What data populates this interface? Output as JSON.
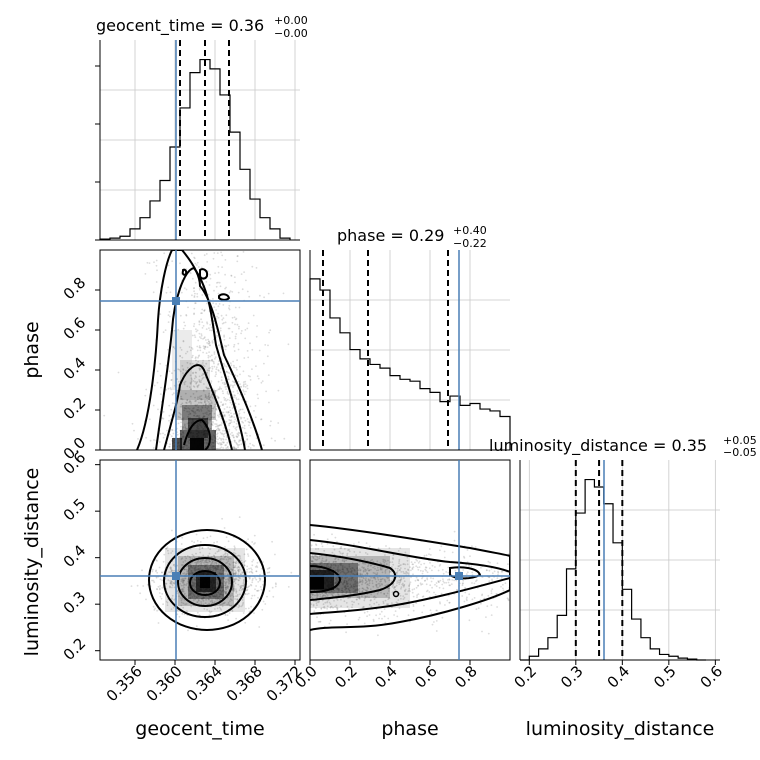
{
  "chart_data": {
    "type": "corner",
    "parameters": [
      "geocent_time",
      "phase",
      "luminosity_distance"
    ],
    "truths": {
      "geocent_time": 0.3605,
      "phase": 0.745,
      "luminosity_distance": 0.357
    },
    "colors": {
      "truth": "#4a7fb5",
      "contour": "#000000",
      "hist": "#000000",
      "grid": "#c8c8c8"
    },
    "titles": [
      {
        "name": "geocent_time",
        "median": "0.36",
        "plus": "+0.00",
        "minus": "−0.00"
      },
      {
        "name": "phase",
        "median": "0.29",
        "plus": "+0.40",
        "minus": "−0.22"
      },
      {
        "name": "luminosity_distance",
        "median": "0.35",
        "plus": "+0.05",
        "minus": "−0.05"
      }
    ],
    "axes": {
      "geocent_time": {
        "range": [
          0.3525,
          0.3725
        ],
        "ticks": [
          0.356,
          0.36,
          0.364,
          0.368,
          0.372
        ],
        "tick_labels": [
          "0.356",
          "0.360",
          "0.364",
          "0.368",
          "0.372"
        ],
        "xlabel": "geocent_time"
      },
      "phase": {
        "range": [
          0.0,
          1.0
        ],
        "ticks": [
          0.0,
          0.2,
          0.4,
          0.6,
          0.8
        ],
        "tick_labels": [
          "0.0",
          "0.2",
          "0.4",
          "0.6",
          "0.8"
        ],
        "xlabel": "phase",
        "ylabel": "phase"
      },
      "luminosity_distance": {
        "range": [
          0.18,
          0.61
        ],
        "ticks": [
          0.2,
          0.3,
          0.4,
          0.5,
          0.6
        ],
        "tick_labels": [
          "0.2",
          "0.3",
          "0.4",
          "0.5",
          "0.6"
        ],
        "xlabel": "luminosity_distance",
        "ylabel": "luminosity_distance"
      }
    },
    "histograms": {
      "geocent_time": {
        "edges": [
          0.3525,
          0.3535,
          0.3545,
          0.3555,
          0.3565,
          0.3575,
          0.3585,
          0.3595,
          0.3605,
          0.3615,
          0.3625,
          0.3635,
          0.3645,
          0.3655,
          0.3665,
          0.3675,
          0.3685,
          0.3695,
          0.3705,
          0.3715
        ],
        "counts": [
          0.005,
          0.01,
          0.02,
          0.06,
          0.12,
          0.21,
          0.32,
          0.5,
          0.71,
          0.9,
          0.97,
          0.92,
          0.78,
          0.58,
          0.38,
          0.22,
          0.12,
          0.06,
          0.01
        ],
        "quantiles": [
          0.3605,
          0.363,
          0.3654
        ]
      },
      "phase": {
        "edges": [
          0.0,
          0.05,
          0.1,
          0.15,
          0.2,
          0.25,
          0.3,
          0.35,
          0.4,
          0.45,
          0.5,
          0.55,
          0.6,
          0.65,
          0.7,
          0.75,
          0.8,
          0.85,
          0.9,
          0.95,
          1.0
        ],
        "counts": [
          0.92,
          0.86,
          0.71,
          0.63,
          0.54,
          0.49,
          0.46,
          0.44,
          0.4,
          0.38,
          0.37,
          0.33,
          0.31,
          0.26,
          0.29,
          0.24,
          0.25,
          0.22,
          0.21,
          0.18
        ],
        "quantiles": [
          0.065,
          0.29,
          0.69
        ]
      },
      "luminosity_distance": {
        "edges": [
          0.18,
          0.2,
          0.22,
          0.24,
          0.26,
          0.28,
          0.3,
          0.32,
          0.34,
          0.36,
          0.38,
          0.4,
          0.42,
          0.44,
          0.46,
          0.48,
          0.5,
          0.52,
          0.54,
          0.56,
          0.58
        ],
        "counts": [
          0.0,
          0.02,
          0.06,
          0.12,
          0.24,
          0.49,
          0.79,
          0.97,
          0.93,
          0.84,
          0.63,
          0.38,
          0.22,
          0.12,
          0.06,
          0.03,
          0.02,
          0.01,
          0.005,
          0.0
        ],
        "quantiles": [
          0.3,
          0.35,
          0.4
        ]
      }
    },
    "scatter_2d": {
      "phase_vs_geocent_time": {
        "x_center": 0.3634,
        "x_spread": 0.0025,
        "y_mode": "decreasing",
        "contour_levels": 4
      },
      "luminosity_distance_vs_geocent_time": {
        "x_center": 0.3635,
        "x_spread": 0.0025,
        "y_center": 0.35,
        "y_spread": 0.035,
        "contour_levels": 4
      },
      "luminosity_distance_vs_phase": {
        "x_mode": "decreasing",
        "y_center": 0.35,
        "y_spread": 0.035,
        "contour_levels": 4
      }
    }
  }
}
